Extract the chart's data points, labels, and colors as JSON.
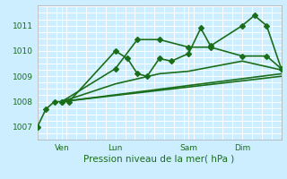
{
  "title": "",
  "xlabel": "Pression niveau de la mer( hPa )",
  "bg_color": "#cceeff",
  "grid_color": "#ffffff",
  "line_color": "#1a6e1a",
  "ylim": [
    1006.5,
    1011.8
  ],
  "yticks": [
    1007,
    1008,
    1009,
    1010,
    1011
  ],
  "xlim": [
    0,
    1.0
  ],
  "day_positions": [
    0.1,
    0.32,
    0.62,
    0.84
  ],
  "day_labels": [
    "Ven",
    "Lun",
    "Sam",
    "Dim"
  ],
  "series": [
    {
      "x": [
        0.0,
        0.035,
        0.07,
        0.1,
        0.13,
        0.32,
        0.37,
        0.41,
        0.45,
        0.5,
        0.55,
        0.62,
        0.67,
        0.71,
        0.84,
        0.89,
        0.94,
        1.0
      ],
      "y": [
        1007.0,
        1007.7,
        1008.0,
        1008.0,
        1008.0,
        1010.0,
        1009.7,
        1009.1,
        1009.0,
        1009.7,
        1009.6,
        1009.9,
        1010.9,
        1010.2,
        1011.0,
        1011.4,
        1011.0,
        1009.3
      ],
      "marker": "D",
      "markersize": 3.0,
      "linewidth": 1.2
    },
    {
      "x": [
        0.1,
        0.32,
        0.41,
        0.5,
        0.62,
        0.71,
        0.84,
        0.94,
        1.0
      ],
      "y": [
        1008.0,
        1009.3,
        1010.45,
        1010.45,
        1010.15,
        1010.15,
        1009.8,
        1009.8,
        1009.3
      ],
      "marker": "D",
      "markersize": 3.0,
      "linewidth": 1.2
    },
    {
      "x": [
        0.1,
        0.32,
        0.5,
        0.62,
        0.84,
        1.0
      ],
      "y": [
        1008.0,
        1008.7,
        1009.1,
        1009.2,
        1009.6,
        1009.25
      ],
      "marker": null,
      "markersize": 0,
      "linewidth": 1.2
    },
    {
      "x": [
        0.1,
        1.0
      ],
      "y": [
        1008.0,
        1009.1
      ],
      "marker": null,
      "markersize": 0,
      "linewidth": 1.2
    },
    {
      "x": [
        0.1,
        1.0
      ],
      "y": [
        1008.0,
        1009.0
      ],
      "marker": null,
      "markersize": 0,
      "linewidth": 1.2
    }
  ]
}
